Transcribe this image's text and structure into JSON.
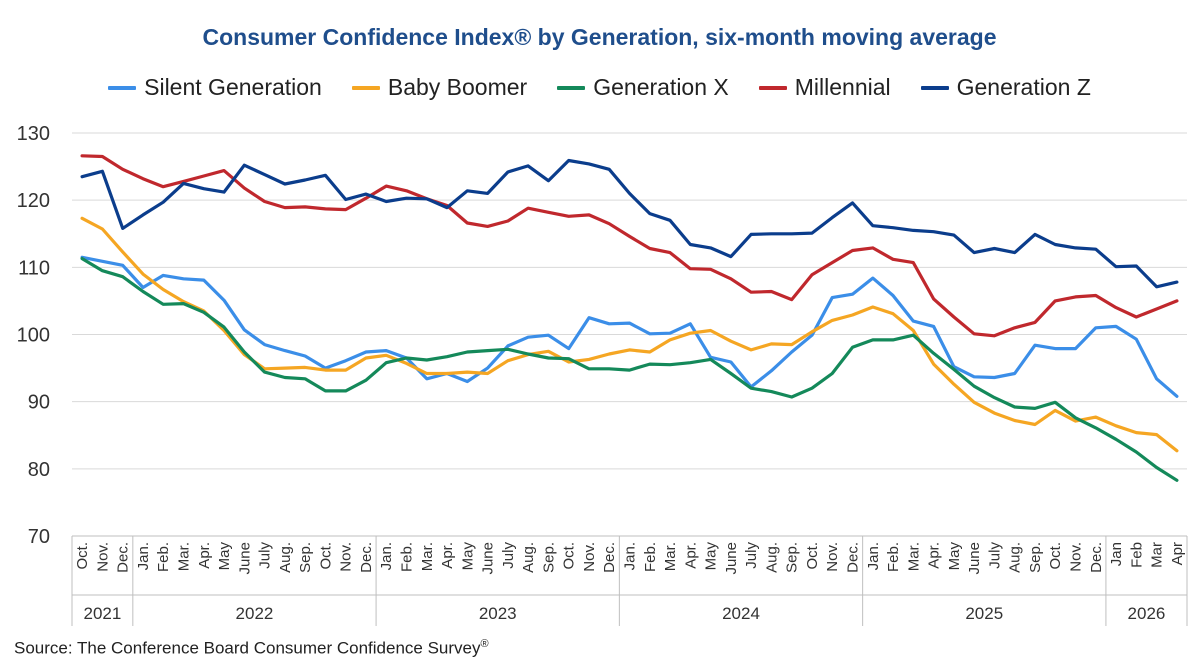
{
  "chart_data": {
    "type": "line",
    "title": "Consumer Confidence Index® by Generation, six-month moving average",
    "ylim": [
      70,
      130
    ],
    "yticks": [
      70,
      80,
      90,
      100,
      110,
      120,
      130
    ],
    "grid": true,
    "legend_position": "top",
    "x": [
      "Oct.",
      "Nov.",
      "Dec.",
      "Jan.",
      "Feb.",
      "Mar.",
      "Apr.",
      "May",
      "June",
      "July",
      "Aug.",
      "Sep.",
      "Oct.",
      "Nov.",
      "Dec.",
      "Jan.",
      "Feb.",
      "Mar.",
      "Apr.",
      "May",
      "June",
      "July",
      "Aug.",
      "Sep.",
      "Oct.",
      "Nov.",
      "Dec.",
      "Jan.",
      "Feb.",
      "Mar.",
      "Apr.",
      "May",
      "June",
      "July",
      "Aug.",
      "Sep.",
      "Oct.",
      "Nov.",
      "Dec.",
      "Jan.",
      "Feb.",
      "Mar.",
      "Apr.",
      "May",
      "June",
      "July",
      "Aug.",
      "Sep.",
      "Oct.",
      "Nov.",
      "Dec.",
      "Jan",
      "Feb",
      "Mar",
      "Apr"
    ],
    "year_groups": [
      {
        "year": "2021",
        "count": 3
      },
      {
        "year": "2022",
        "count": 12
      },
      {
        "year": "2023",
        "count": 12
      },
      {
        "year": "2024",
        "count": 12
      },
      {
        "year": "2025",
        "count": 12
      },
      {
        "year": "2026",
        "count": 4
      }
    ],
    "series": [
      {
        "name": "Silent Generation",
        "color": "#3b8ee8",
        "values": [
          111.5,
          110.9,
          110.3,
          107.0,
          108.8,
          108.3,
          108.1,
          105.1,
          100.7,
          98.5,
          97.6,
          96.8,
          95.0,
          96.1,
          97.4,
          97.6,
          96.5,
          93.4,
          94.2,
          93.0,
          95.0,
          98.3,
          99.6,
          99.9,
          97.9,
          102.5,
          101.6,
          101.7,
          100.1,
          100.2,
          101.6,
          96.6,
          95.9,
          92.2,
          94.6,
          97.4,
          99.9,
          105.5,
          106.0,
          108.4,
          105.8,
          102.0,
          101.2,
          95.2,
          93.7,
          93.6,
          94.2,
          98.4,
          97.9,
          97.9,
          101.0,
          101.2,
          99.3,
          93.4,
          90.8
        ]
      },
      {
        "name": "Baby Boomer",
        "color": "#f5a623",
        "values": [
          117.3,
          115.7,
          112.3,
          109.0,
          106.7,
          104.9,
          103.5,
          100.6,
          97.0,
          94.9,
          95.0,
          95.1,
          94.7,
          94.7,
          96.5,
          96.9,
          95.7,
          94.2,
          94.2,
          94.4,
          94.2,
          96.1,
          97.0,
          97.5,
          95.9,
          96.3,
          97.1,
          97.7,
          97.4,
          99.2,
          100.2,
          100.6,
          99.0,
          97.7,
          98.6,
          98.5,
          100.4,
          102.1,
          102.9,
          104.1,
          103.1,
          100.6,
          95.6,
          92.6,
          89.9,
          88.3,
          87.2,
          86.6,
          88.7,
          87.1,
          87.7,
          86.4,
          85.4,
          85.1,
          82.7
        ]
      },
      {
        "name": "Generation X",
        "color": "#14895a",
        "values": [
          111.3,
          109.5,
          108.6,
          106.4,
          104.5,
          104.6,
          103.3,
          101.1,
          97.4,
          94.4,
          93.6,
          93.4,
          91.6,
          91.6,
          93.2,
          95.8,
          96.5,
          96.2,
          96.7,
          97.4,
          97.6,
          97.8,
          97.1,
          96.5,
          96.4,
          94.9,
          94.9,
          94.7,
          95.6,
          95.5,
          95.8,
          96.3,
          94.2,
          92.0,
          91.5,
          90.7,
          92.0,
          94.2,
          98.1,
          99.2,
          99.2,
          99.9,
          97.2,
          94.8,
          92.3,
          90.6,
          89.2,
          89.0,
          89.9,
          87.6,
          86.1,
          84.4,
          82.5,
          80.2,
          78.3
        ]
      },
      {
        "name": "Millennial",
        "color": "#c0282d",
        "values": [
          126.6,
          126.5,
          124.6,
          123.2,
          122.0,
          122.8,
          123.6,
          124.4,
          121.8,
          119.8,
          118.9,
          119.0,
          118.7,
          118.6,
          120.3,
          122.1,
          121.4,
          120.2,
          119.2,
          116.6,
          116.1,
          116.9,
          118.8,
          118.2,
          117.6,
          117.8,
          116.5,
          114.6,
          112.8,
          112.2,
          109.8,
          109.7,
          108.3,
          106.3,
          106.4,
          105.2,
          108.9,
          110.7,
          112.5,
          112.9,
          111.2,
          110.7,
          105.3,
          102.6,
          100.1,
          99.8,
          101.0,
          101.8,
          105.0,
          105.6,
          105.8,
          104.0,
          102.6,
          103.8,
          105.0
        ]
      },
      {
        "name": "Generation Z",
        "color": "#0b3d8c",
        "values": [
          123.5,
          124.3,
          115.8,
          117.8,
          119.7,
          122.5,
          121.7,
          121.2,
          125.2,
          123.8,
          122.4,
          123.0,
          123.7,
          120.1,
          120.9,
          119.8,
          120.3,
          120.2,
          118.9,
          121.4,
          121.0,
          124.2,
          125.1,
          122.9,
          125.9,
          125.4,
          124.6,
          121.0,
          118.0,
          117.0,
          113.4,
          112.9,
          111.6,
          114.9,
          115.0,
          115.0,
          115.1,
          117.4,
          119.6,
          116.2,
          115.9,
          115.5,
          115.3,
          114.8,
          112.2,
          112.8,
          112.2,
          114.9,
          113.4,
          112.9,
          112.7,
          110.1,
          110.2,
          107.1,
          107.8
        ]
      }
    ]
  },
  "source": {
    "text": "Source: The Conference Board Consumer Confidence Survey",
    "mark": "®"
  }
}
